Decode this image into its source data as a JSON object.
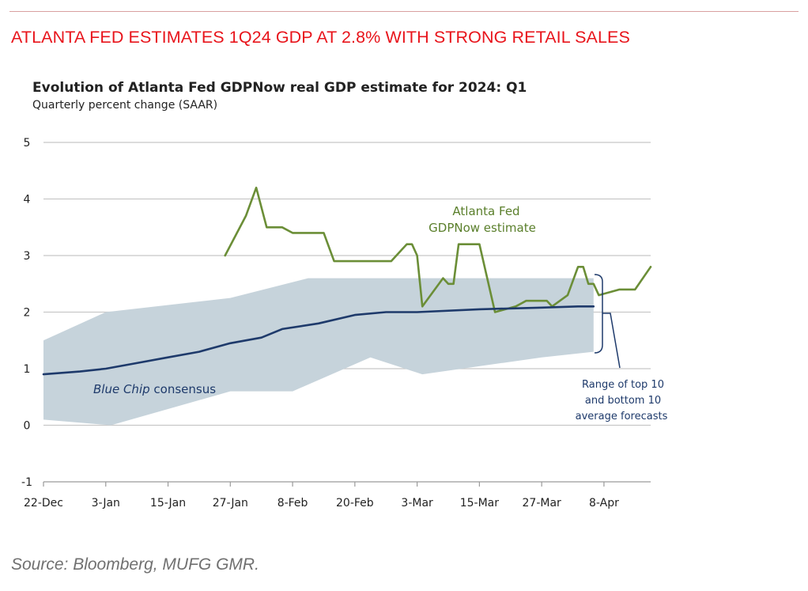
{
  "page": {
    "headline": "ATLANTA FED ESTIMATES 1Q24 GDP AT 2.8% WITH STRONG RETAIL SALES",
    "source": "Source: Bloomberg, MUFG GMR."
  },
  "chart_data": {
    "type": "line",
    "title": "Evolution of Atlanta Fed GDPNow real GDP estimate for 2024: Q1",
    "subtitle": "Quarterly percent change (SAAR)",
    "xlabel": "",
    "ylabel": "",
    "ylim": [
      -1,
      5
    ],
    "yticks": [
      -1,
      0,
      1,
      2,
      3,
      4,
      5
    ],
    "xlim": [
      "2023-12-22",
      "2024-04-17"
    ],
    "xticks": [
      {
        "date": "2023-12-22",
        "label": "22-Dec"
      },
      {
        "date": "2024-01-03",
        "label": "3-Jan"
      },
      {
        "date": "2024-01-15",
        "label": "15-Jan"
      },
      {
        "date": "2024-01-27",
        "label": "27-Jan"
      },
      {
        "date": "2024-02-08",
        "label": "8-Feb"
      },
      {
        "date": "2024-02-20",
        "label": "20-Feb"
      },
      {
        "date": "2024-03-03",
        "label": "3-Mar"
      },
      {
        "date": "2024-03-15",
        "label": "15-Mar"
      },
      {
        "date": "2024-03-27",
        "label": "27-Mar"
      },
      {
        "date": "2024-04-08",
        "label": "8-Apr"
      }
    ],
    "grid": true,
    "legend": "none",
    "series": [
      {
        "name": "GDPNow estimate",
        "color": "#6b8e37",
        "points": [
          {
            "x": "2024-01-26",
            "y": 3.0
          },
          {
            "x": "2024-01-30",
            "y": 3.7
          },
          {
            "x": "2024-02-01",
            "y": 4.2
          },
          {
            "x": "2024-02-03",
            "y": 3.5
          },
          {
            "x": "2024-02-06",
            "y": 3.5
          },
          {
            "x": "2024-02-08",
            "y": 3.4
          },
          {
            "x": "2024-02-14",
            "y": 3.4
          },
          {
            "x": "2024-02-16",
            "y": 2.9
          },
          {
            "x": "2024-02-27",
            "y": 2.9
          },
          {
            "x": "2024-03-01",
            "y": 3.2
          },
          {
            "x": "2024-03-02",
            "y": 3.2
          },
          {
            "x": "2024-03-03",
            "y": 3.0
          },
          {
            "x": "2024-03-04",
            "y": 2.1
          },
          {
            "x": "2024-03-08",
            "y": 2.6
          },
          {
            "x": "2024-03-09",
            "y": 2.5
          },
          {
            "x": "2024-03-10",
            "y": 2.5
          },
          {
            "x": "2024-03-11",
            "y": 3.2
          },
          {
            "x": "2024-03-14",
            "y": 3.2
          },
          {
            "x": "2024-03-15",
            "y": 3.2
          },
          {
            "x": "2024-03-18",
            "y": 2.0
          },
          {
            "x": "2024-03-22",
            "y": 2.1
          },
          {
            "x": "2024-03-24",
            "y": 2.2
          },
          {
            "x": "2024-03-28",
            "y": 2.2
          },
          {
            "x": "2024-03-29",
            "y": 2.1
          },
          {
            "x": "2024-04-01",
            "y": 2.3
          },
          {
            "x": "2024-04-03",
            "y": 2.8
          },
          {
            "x": "2024-04-04",
            "y": 2.8
          },
          {
            "x": "2024-04-05",
            "y": 2.5
          },
          {
            "x": "2024-04-06",
            "y": 2.5
          },
          {
            "x": "2024-04-07",
            "y": 2.3
          },
          {
            "x": "2024-04-09",
            "y": 2.35
          },
          {
            "x": "2024-04-11",
            "y": 2.4
          },
          {
            "x": "2024-04-14",
            "y": 2.4
          },
          {
            "x": "2024-04-17",
            "y": 2.8
          }
        ]
      },
      {
        "name": "Blue Chip consensus",
        "color": "#1e3a6b",
        "points": [
          {
            "x": "2023-12-22",
            "y": 0.9
          },
          {
            "x": "2023-12-29",
            "y": 0.95
          },
          {
            "x": "2024-01-03",
            "y": 1.0
          },
          {
            "x": "2024-01-09",
            "y": 1.1
          },
          {
            "x": "2024-01-15",
            "y": 1.2
          },
          {
            "x": "2024-01-21",
            "y": 1.3
          },
          {
            "x": "2024-01-27",
            "y": 1.45
          },
          {
            "x": "2024-02-02",
            "y": 1.55
          },
          {
            "x": "2024-02-06",
            "y": 1.7
          },
          {
            "x": "2024-02-13",
            "y": 1.8
          },
          {
            "x": "2024-02-20",
            "y": 1.95
          },
          {
            "x": "2024-02-26",
            "y": 2.0
          },
          {
            "x": "2024-03-03",
            "y": 2.0
          },
          {
            "x": "2024-03-15",
            "y": 2.05
          },
          {
            "x": "2024-03-27",
            "y": 2.08
          },
          {
            "x": "2024-04-03",
            "y": 2.1
          },
          {
            "x": "2024-04-06",
            "y": 2.1
          }
        ]
      }
    ],
    "range_band": {
      "label": "Range of top 10 and bottom 10 average forecasts",
      "color": "#c6d3db",
      "upper": [
        {
          "x": "2023-12-22",
          "y": 1.5
        },
        {
          "x": "2024-01-03",
          "y": 2.0
        },
        {
          "x": "2024-01-27",
          "y": 2.25
        },
        {
          "x": "2024-02-11",
          "y": 2.6
        },
        {
          "x": "2024-04-06",
          "y": 2.6
        }
      ],
      "lower": [
        {
          "x": "2024-04-06",
          "y": 1.3
        },
        {
          "x": "2024-03-27",
          "y": 1.2
        },
        {
          "x": "2024-03-04",
          "y": 0.9
        },
        {
          "x": "2024-02-23",
          "y": 1.2
        },
        {
          "x": "2024-02-08",
          "y": 0.6
        },
        {
          "x": "2024-01-27",
          "y": 0.6
        },
        {
          "x": "2024-01-04",
          "y": 0.0
        },
        {
          "x": "2023-12-22",
          "y": 0.1
        }
      ]
    },
    "annotations": {
      "gdpnow_line1": "Atlanta Fed",
      "gdpnow_line2": "GDPNow estimate",
      "bluechip_italic": "Blue Chip",
      "bluechip_rest": " consensus",
      "range_line1": "Range of top 10",
      "range_line2": "and bottom 10",
      "range_line3": "average forecasts"
    }
  }
}
